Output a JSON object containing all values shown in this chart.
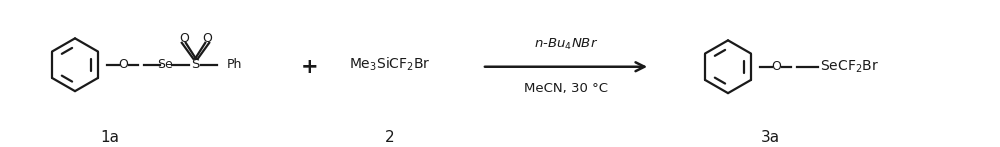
{
  "bg_color": "#ffffff",
  "line_color": "#1a1a1a",
  "figsize": [
    10.0,
    1.47
  ],
  "dpi": 100,
  "compound1_label": "1a",
  "compound2_label": "2",
  "compound3_label": "3a",
  "compound2_text": "Me$_3$SiCF$_2$Br",
  "reagent_top": "$n$-Bu$_4$NBr",
  "reagent_bottom": "MeCN, 30 °C",
  "plus_sign": "+",
  "se_label": "Se",
  "s_label": "S",
  "ph_label": "Ph",
  "o_label": "O",
  "secf2br_label": "SeCF$_2$Br",
  "font_size_label": 11,
  "font_size_atom": 9,
  "font_size_text": 10
}
